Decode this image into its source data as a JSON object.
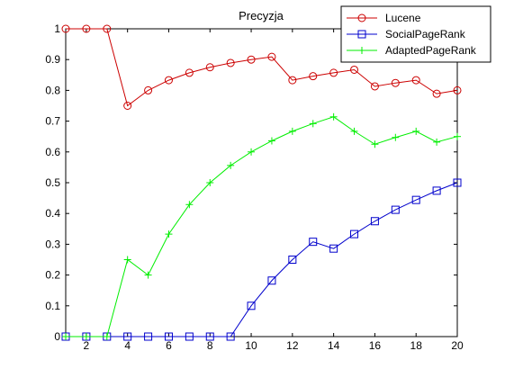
{
  "chart_data": {
    "type": "line",
    "title": "Precyzja",
    "xlabel": "",
    "ylabel": "",
    "xlim": [
      1,
      20
    ],
    "ylim": [
      0,
      1
    ],
    "x_ticks": [
      2,
      4,
      6,
      8,
      10,
      12,
      14,
      16,
      18,
      20
    ],
    "y_ticks": [
      0,
      0.1,
      0.2,
      0.3,
      0.4,
      0.5,
      0.6,
      0.7,
      0.8,
      0.9,
      1
    ],
    "x_tick_labels": [
      "2",
      "4",
      "6",
      "8",
      "10",
      "12",
      "14",
      "16",
      "18",
      "20"
    ],
    "y_tick_labels": [
      "0",
      "0.1",
      "0.2",
      "0.3",
      "0.4",
      "0.5",
      "0.6",
      "0.7",
      "0.8",
      "0.9",
      "1"
    ],
    "grid": false,
    "legend_position": "top-right",
    "x": [
      1,
      2,
      3,
      4,
      5,
      6,
      7,
      8,
      9,
      10,
      11,
      12,
      13,
      14,
      15,
      16,
      17,
      18,
      19,
      20
    ],
    "series": [
      {
        "name": "Lucene",
        "color": "#cc0000",
        "marker": "circle",
        "values": [
          1,
          1,
          1,
          0.75,
          0.8,
          0.833,
          0.857,
          0.875,
          0.889,
          0.9,
          0.909,
          0.833,
          0.846,
          0.857,
          0.867,
          0.813,
          0.824,
          0.833,
          0.789,
          0.8
        ]
      },
      {
        "name": "SocialPageRank",
        "color": "#0000cc",
        "marker": "square",
        "values": [
          0,
          0,
          0,
          0,
          0,
          0,
          0,
          0,
          0,
          0.1,
          0.182,
          0.25,
          0.308,
          0.286,
          0.333,
          0.375,
          0.412,
          0.444,
          0.474,
          0.5
        ]
      },
      {
        "name": "AdaptedPageRank",
        "color": "#00ee00",
        "marker": "plus",
        "values": [
          0,
          0,
          0,
          0.25,
          0.2,
          0.333,
          0.429,
          0.5,
          0.556,
          0.6,
          0.636,
          0.667,
          0.692,
          0.714,
          0.667,
          0.625,
          0.647,
          0.667,
          0.632,
          0.65
        ]
      }
    ]
  }
}
